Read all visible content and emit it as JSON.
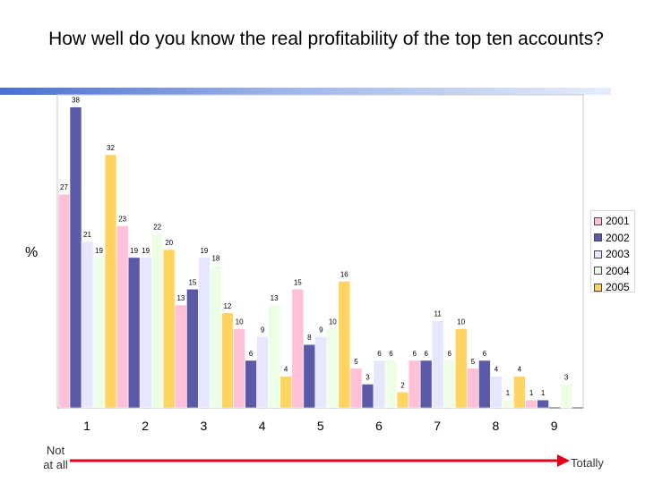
{
  "title": "How well do you know the real profitability of the top ten accounts?",
  "ylabel": "%",
  "left_label": "Not at all",
  "right_label": "Totally",
  "colors": {
    "2001": "#ffc0d8",
    "2002": "#5a5aa8",
    "2003": "#e6e6ff",
    "2004": "#ecffe6",
    "2005": "#ffd460"
  },
  "chart_data": {
    "type": "bar",
    "title": "How well do you know the real profitability of the top ten accounts?",
    "ylabel": "%",
    "categories": [
      "1",
      "2",
      "3",
      "4",
      "5",
      "6",
      "7",
      "8",
      "9"
    ],
    "legend_position": "right",
    "grid": false,
    "ylim": [
      0,
      40
    ],
    "series": [
      {
        "name": "2001",
        "values": [
          27,
          23,
          13,
          10,
          15,
          5,
          6,
          5,
          1
        ]
      },
      {
        "name": "2002",
        "values": [
          38,
          19,
          15,
          6,
          8,
          3,
          6,
          6,
          1
        ]
      },
      {
        "name": "2003",
        "values": [
          21,
          19,
          19,
          9,
          9,
          6,
          11,
          4,
          null
        ]
      },
      {
        "name": "2004",
        "values": [
          19,
          22,
          18,
          13,
          10,
          6,
          6,
          1,
          3
        ]
      },
      {
        "name": "2005",
        "values": [
          32,
          20,
          12,
          4,
          16,
          2,
          10,
          4,
          null
        ]
      }
    ]
  }
}
